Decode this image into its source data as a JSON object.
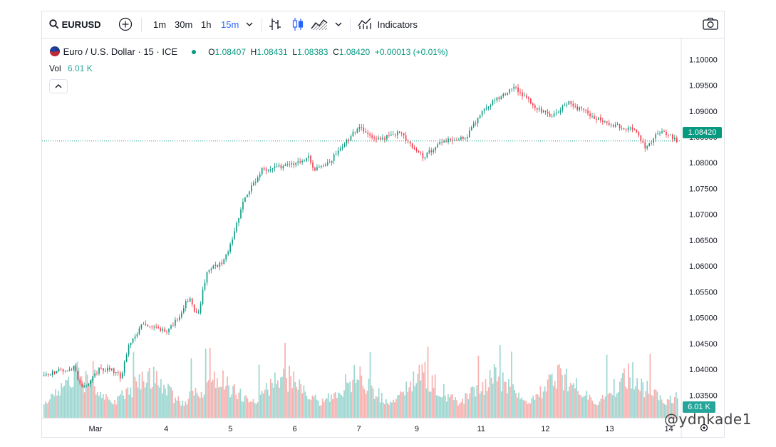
{
  "toolbar": {
    "symbol": "EURUSD",
    "intervals": [
      "1m",
      "30m",
      "1h",
      "15m"
    ],
    "active_interval": "15m",
    "indicators_label": "Indicators"
  },
  "legend": {
    "title": "Euro / U.S. Dollar · 15 · ICE",
    "open_label": "O",
    "open": "1.08407",
    "high_label": "H",
    "high": "1.08431",
    "low_label": "L",
    "low": "1.08383",
    "close_label": "C",
    "close": "1.08420",
    "change": "+0.00013 (+0.01%)",
    "vol_label": "Vol",
    "vol_value": "6.01 K"
  },
  "last_price_label": "1.08420",
  "volume_label": "6.01 K",
  "watermark": "@ydnkade1",
  "colors": {
    "up": "#089981",
    "down": "#f23645",
    "vol_up": "#26a69a",
    "vol_down": "#ef5350",
    "accent": "#2962ff"
  },
  "chart_data": {
    "type": "candlestick",
    "symbol": "EURUSD",
    "interval": "15",
    "x_tick_labels": [
      "Mar",
      "4",
      "5",
      "6",
      "7",
      "9",
      "11",
      "12",
      "13",
      "14"
    ],
    "y_tick_labels": [
      "1.10000",
      "1.09500",
      "1.09000",
      "1.08500",
      "1.08000",
      "1.07500",
      "1.07000",
      "1.06500",
      "1.06000",
      "1.05500",
      "1.05000",
      "1.04500",
      "1.04000",
      "1.03500"
    ],
    "ylim": [
      1.032,
      1.1017
    ],
    "last_close": 1.0842,
    "price_path": [
      [
        0.0,
        1.0388
      ],
      [
        0.05,
        1.0405
      ],
      [
        0.062,
        1.0365
      ],
      [
        0.075,
        1.0375
      ],
      [
        0.09,
        1.04
      ],
      [
        0.112,
        1.0398
      ],
      [
        0.125,
        1.0385
      ],
      [
        0.137,
        1.045
      ],
      [
        0.16,
        1.0488
      ],
      [
        0.2,
        1.0475
      ],
      [
        0.215,
        1.05
      ],
      [
        0.232,
        1.054
      ],
      [
        0.245,
        1.05
      ],
      [
        0.26,
        1.059
      ],
      [
        0.285,
        1.0605
      ],
      [
        0.3,
        1.065
      ],
      [
        0.315,
        1.072
      ],
      [
        0.345,
        1.0785
      ],
      [
        0.39,
        1.0795
      ],
      [
        0.42,
        1.081
      ],
      [
        0.43,
        1.0785
      ],
      [
        0.455,
        1.0805
      ],
      [
        0.5,
        1.087
      ],
      [
        0.53,
        1.0845
      ],
      [
        0.565,
        1.0858
      ],
      [
        0.6,
        1.081
      ],
      [
        0.63,
        1.084
      ],
      [
        0.668,
        1.085
      ],
      [
        0.7,
        1.091
      ],
      [
        0.744,
        1.0945
      ],
      [
        0.78,
        1.0905
      ],
      [
        0.8,
        1.089
      ],
      [
        0.83,
        1.0915
      ],
      [
        0.86,
        1.0895
      ],
      [
        0.895,
        1.0875
      ],
      [
        0.935,
        1.0862
      ],
      [
        0.95,
        1.083
      ],
      [
        0.975,
        1.0862
      ],
      [
        1.0,
        1.0842
      ]
    ]
  }
}
